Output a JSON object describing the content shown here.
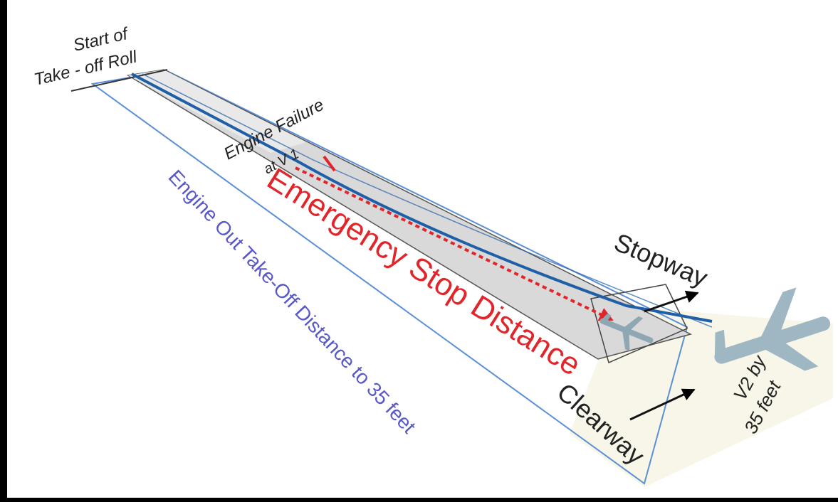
{
  "labels": {
    "start_line1": "Start of",
    "start_line2": "Take - off Roll",
    "engine_failure_line1": "Engine Failure",
    "engine_failure_line2": "at V 1",
    "emergency_stop": "Emergency Stop Distance",
    "engine_out_distance": "Engine Out Take-Off Distance to 35 feet",
    "stopway": "Stopway",
    "clearway": "Clearway",
    "v2_line1": "V2 by",
    "v2_line2": "35 feet"
  },
  "colors": {
    "background": "#ffffff",
    "frame": "#000000",
    "runway_fill": "#d9d9d9",
    "runway_edge": "#555555",
    "blue_path": "#1f5fa8",
    "light_blue_outline": "#5b8fd6",
    "red_arrow": "#e0262b",
    "engine_out_text": "#5858c8",
    "clearway_fill": "#f7f6e8",
    "aircraft": "#9fb7c2"
  }
}
